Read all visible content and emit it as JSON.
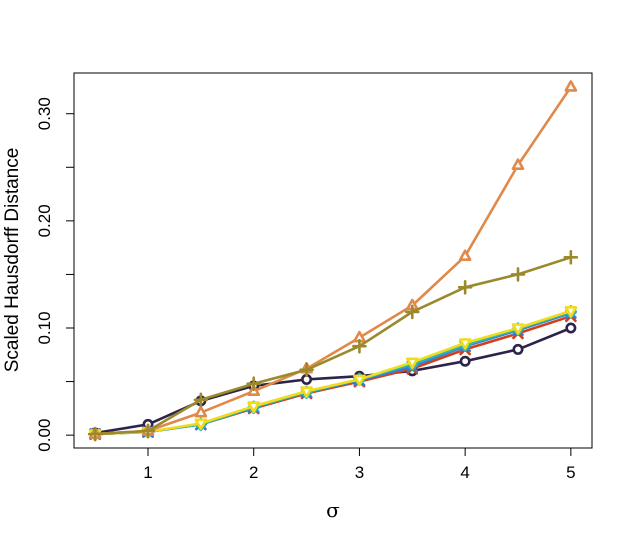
{
  "chart_data": {
    "type": "line",
    "title": "",
    "xlabel": "σ",
    "ylabel": "Scaled Hausdorff Distance",
    "xlim": [
      0.3,
      5.2
    ],
    "ylim": [
      -0.012,
      0.338
    ],
    "x": [
      0.5,
      1,
      1.5,
      2,
      2.5,
      3,
      3.5,
      4,
      4.5,
      5
    ],
    "x_ticks": [
      1,
      2,
      3,
      4,
      5
    ],
    "x_tick_labels": [
      "1",
      "2",
      "3",
      "4",
      "5"
    ],
    "y_ticks": [
      0.0,
      0.05,
      0.1,
      0.15,
      0.2,
      0.25,
      0.3
    ],
    "y_tick_labels": [
      "0.00",
      "",
      "0.10",
      "",
      "0.20",
      "",
      "0.30"
    ],
    "grid": false,
    "legend": "none",
    "series": [
      {
        "color": "#2e2449",
        "marker": "circle",
        "values": [
          0.002,
          0.01,
          0.032,
          0.046,
          0.052,
          0.055,
          0.06,
          0.069,
          0.08,
          0.1
        ]
      },
      {
        "color": "#d43f1a",
        "marker": "x",
        "values": [
          0.001,
          0.003,
          0.01,
          0.025,
          0.039,
          0.05,
          0.062,
          0.08,
          0.095,
          0.111
        ]
      },
      {
        "color": "#3a7bd5",
        "marker": "x",
        "values": [
          0.001,
          0.003,
          0.01,
          0.026,
          0.04,
          0.051,
          0.064,
          0.083,
          0.098,
          0.114
        ]
      },
      {
        "color": "#2bb5b5",
        "marker": "diamond",
        "values": [
          0.001,
          0.003,
          0.01,
          0.026,
          0.04,
          0.052,
          0.066,
          0.084,
          0.099,
          0.115
        ]
      },
      {
        "color": "#f0dc1c",
        "marker": "triangle-down",
        "values": [
          0.001,
          0.003,
          0.011,
          0.027,
          0.041,
          0.052,
          0.068,
          0.086,
          0.1,
          0.116
        ]
      },
      {
        "color": "#e0894a",
        "marker": "triangle",
        "values": [
          0.001,
          0.004,
          0.021,
          0.041,
          0.062,
          0.091,
          0.121,
          0.167,
          0.252,
          0.325
        ]
      },
      {
        "color": "#9a8a2c",
        "marker": "plus",
        "values": [
          0.001,
          0.004,
          0.033,
          0.048,
          0.061,
          0.083,
          0.115,
          0.138,
          0.15,
          0.166
        ]
      }
    ]
  }
}
